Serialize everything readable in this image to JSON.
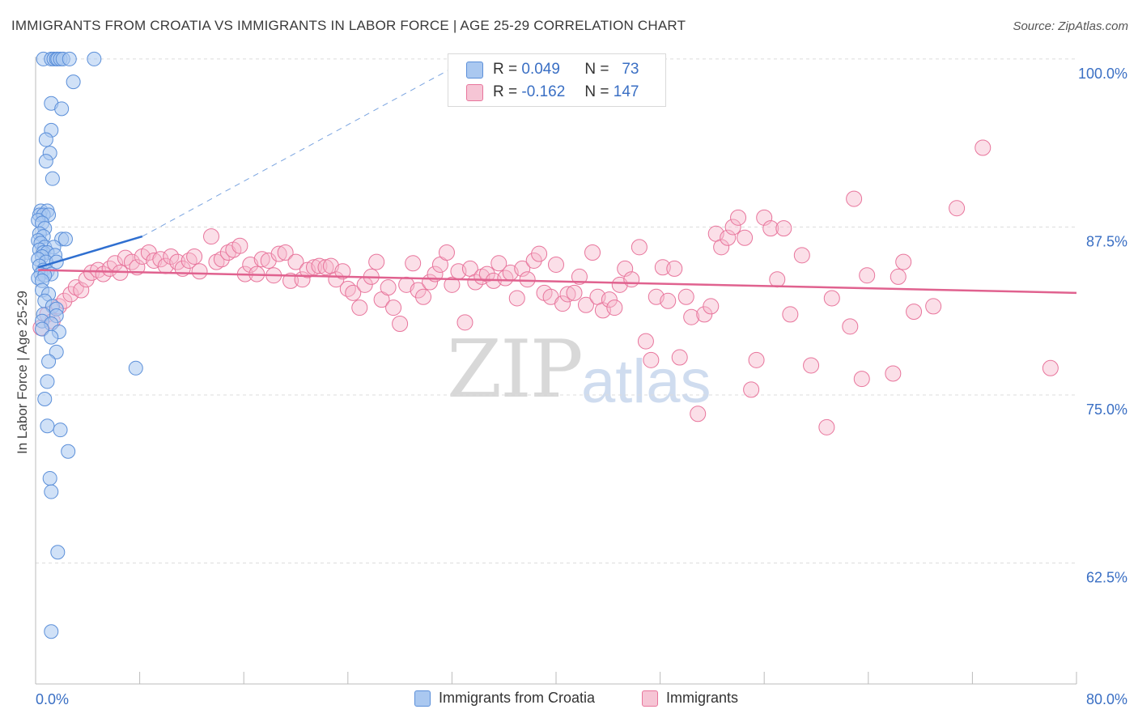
{
  "title": "IMMIGRANTS FROM CROATIA VS IMMIGRANTS IN LABOR FORCE | AGE 25-29 CORRELATION CHART",
  "source": "Source: ZipAtlas.com",
  "watermark": {
    "zip": "ZIP",
    "atlas": "atlas"
  },
  "colors": {
    "blue": "#5b8fd9",
    "blue_fill": "#aac8f0",
    "pink": "#e8759c",
    "pink_fill": "#f6b8cc",
    "axis_text": "#3a6fc4",
    "grid": "#dddddd"
  },
  "stats_legend": [
    {
      "r_label": "R =",
      "r_value": "0.049",
      "n_label": "N =",
      "n_value": "73",
      "series": "croatia"
    },
    {
      "r_label": "R =",
      "r_value": "-0.162",
      "n_label": "N =",
      "n_value": "147",
      "series": "immigrants"
    }
  ],
  "chart_data": {
    "type": "scatter",
    "title": "IMMIGRANTS FROM CROATIA VS IMMIGRANTS IN LABOR FORCE | AGE 25-29 CORRELATION CHART",
    "xlabel": "",
    "ylabel": "In Labor Force | Age 25-29",
    "xlim": [
      0,
      80
    ],
    "ylim": [
      53.5,
      101.5
    ],
    "x_tick_labels": [
      "0.0%",
      "80.0%"
    ],
    "y_ticks": [
      62.5,
      75.0,
      87.5,
      100.0
    ],
    "y_tick_labels": [
      "62.5%",
      "75.0%",
      "87.5%",
      "100.0%"
    ],
    "grid": true,
    "legend": [
      {
        "name": "Immigrants from Croatia"
      },
      {
        "name": "Immigrants"
      }
    ],
    "series": [
      {
        "name": "Immigrants from Croatia",
        "trend": {
          "x": [
            0.2,
            8.2
          ],
          "y": [
            84.5,
            86.8
          ],
          "dashed_to": [
            33.3,
            100.0
          ]
        },
        "points": [
          [
            0.6,
            100
          ],
          [
            1.2,
            100
          ],
          [
            1.4,
            100
          ],
          [
            1.6,
            100
          ],
          [
            1.7,
            100
          ],
          [
            1.9,
            100
          ],
          [
            2.1,
            100
          ],
          [
            2.6,
            100
          ],
          [
            4.5,
            100
          ],
          [
            2.9,
            98.3
          ],
          [
            1.2,
            96.7
          ],
          [
            2.0,
            96.3
          ],
          [
            1.2,
            94.7
          ],
          [
            0.8,
            94.0
          ],
          [
            1.1,
            93.0
          ],
          [
            0.8,
            92.4
          ],
          [
            1.3,
            91.1
          ],
          [
            0.4,
            88.7
          ],
          [
            0.9,
            88.7
          ],
          [
            0.3,
            88.4
          ],
          [
            0.6,
            88.4
          ],
          [
            1.0,
            88.4
          ],
          [
            0.2,
            88.0
          ],
          [
            0.5,
            87.8
          ],
          [
            0.7,
            87.4
          ],
          [
            0.3,
            87.0
          ],
          [
            0.6,
            86.8
          ],
          [
            2.0,
            86.6
          ],
          [
            2.3,
            86.6
          ],
          [
            0.2,
            86.5
          ],
          [
            0.4,
            86.3
          ],
          [
            0.7,
            86.0
          ],
          [
            1.4,
            86.0
          ],
          [
            0.3,
            85.8
          ],
          [
            0.6,
            85.6
          ],
          [
            0.9,
            85.6
          ],
          [
            0.5,
            85.3
          ],
          [
            1.5,
            85.4
          ],
          [
            0.2,
            85.1
          ],
          [
            0.8,
            84.9
          ],
          [
            1.6,
            84.9
          ],
          [
            0.3,
            84.6
          ],
          [
            0.6,
            84.3
          ],
          [
            0.9,
            84.2
          ],
          [
            0.4,
            84.0
          ],
          [
            1.2,
            84.0
          ],
          [
            0.2,
            83.7
          ],
          [
            0.7,
            83.9
          ],
          [
            0.5,
            83.5
          ],
          [
            0.5,
            82.8
          ],
          [
            1.0,
            82.5
          ],
          [
            0.7,
            82.0
          ],
          [
            1.3,
            81.6
          ],
          [
            1.6,
            81.4
          ],
          [
            0.6,
            81.0
          ],
          [
            1.6,
            80.9
          ],
          [
            0.5,
            80.5
          ],
          [
            1.2,
            80.3
          ],
          [
            0.5,
            79.9
          ],
          [
            1.8,
            79.7
          ],
          [
            1.2,
            79.3
          ],
          [
            1.6,
            78.2
          ],
          [
            1.0,
            77.5
          ],
          [
            7.7,
            77.0
          ],
          [
            0.9,
            76.0
          ],
          [
            0.7,
            74.7
          ],
          [
            0.9,
            72.7
          ],
          [
            1.9,
            72.4
          ],
          [
            2.5,
            70.8
          ],
          [
            1.1,
            68.8
          ],
          [
            1.2,
            67.8
          ],
          [
            1.7,
            63.3
          ],
          [
            1.2,
            57.4
          ]
        ]
      },
      {
        "name": "Immigrants",
        "trend": {
          "x": [
            0.2,
            80.0
          ],
          "y": [
            84.3,
            82.6
          ]
        },
        "points": [
          [
            0.4,
            80.0
          ],
          [
            0.9,
            81.0
          ],
          [
            1.3,
            80.5
          ],
          [
            1.8,
            81.6
          ],
          [
            2.2,
            82.0
          ],
          [
            2.7,
            82.5
          ],
          [
            3.1,
            83.0
          ],
          [
            3.5,
            82.8
          ],
          [
            3.9,
            83.6
          ],
          [
            4.3,
            84.1
          ],
          [
            4.8,
            84.3
          ],
          [
            5.2,
            84.0
          ],
          [
            5.7,
            84.4
          ],
          [
            6.1,
            84.8
          ],
          [
            6.5,
            84.1
          ],
          [
            6.9,
            85.2
          ],
          [
            7.4,
            84.9
          ],
          [
            7.8,
            84.5
          ],
          [
            8.2,
            85.3
          ],
          [
            8.7,
            85.6
          ],
          [
            9.1,
            85.0
          ],
          [
            9.6,
            85.1
          ],
          [
            10.0,
            84.6
          ],
          [
            10.4,
            85.3
          ],
          [
            10.9,
            84.9
          ],
          [
            11.3,
            84.4
          ],
          [
            11.8,
            85.0
          ],
          [
            12.2,
            85.3
          ],
          [
            12.6,
            84.2
          ],
          [
            13.5,
            86.8
          ],
          [
            13.9,
            84.9
          ],
          [
            14.3,
            85.1
          ],
          [
            14.8,
            85.6
          ],
          [
            15.2,
            85.8
          ],
          [
            15.7,
            86.1
          ],
          [
            16.1,
            84.0
          ],
          [
            16.5,
            84.7
          ],
          [
            17.0,
            84.0
          ],
          [
            17.4,
            85.1
          ],
          [
            17.9,
            85.0
          ],
          [
            18.3,
            83.9
          ],
          [
            18.7,
            85.5
          ],
          [
            19.2,
            85.6
          ],
          [
            19.6,
            83.5
          ],
          [
            20.0,
            84.9
          ],
          [
            20.5,
            83.6
          ],
          [
            20.9,
            84.3
          ],
          [
            21.4,
            84.5
          ],
          [
            21.8,
            84.6
          ],
          [
            22.3,
            84.5
          ],
          [
            22.7,
            84.6
          ],
          [
            23.1,
            83.6
          ],
          [
            23.6,
            84.2
          ],
          [
            24.0,
            82.9
          ],
          [
            24.4,
            82.6
          ],
          [
            24.9,
            81.5
          ],
          [
            25.3,
            83.2
          ],
          [
            25.8,
            83.8
          ],
          [
            26.2,
            84.9
          ],
          [
            26.6,
            82.1
          ],
          [
            27.1,
            83.0
          ],
          [
            27.5,
            81.5
          ],
          [
            28.0,
            80.3
          ],
          [
            28.5,
            83.2
          ],
          [
            29.0,
            84.8
          ],
          [
            29.4,
            82.8
          ],
          [
            29.8,
            82.3
          ],
          [
            30.3,
            83.4
          ],
          [
            30.7,
            84.0
          ],
          [
            31.1,
            84.7
          ],
          [
            31.6,
            85.6
          ],
          [
            32.0,
            83.2
          ],
          [
            32.5,
            84.2
          ],
          [
            33.0,
            80.4
          ],
          [
            33.4,
            84.4
          ],
          [
            33.8,
            83.4
          ],
          [
            34.3,
            83.8
          ],
          [
            34.7,
            84.0
          ],
          [
            35.2,
            83.5
          ],
          [
            35.6,
            84.8
          ],
          [
            36.1,
            83.7
          ],
          [
            36.5,
            84.1
          ],
          [
            37.0,
            82.2
          ],
          [
            37.4,
            84.4
          ],
          [
            37.8,
            83.6
          ],
          [
            38.3,
            85.0
          ],
          [
            38.7,
            85.5
          ],
          [
            39.1,
            82.6
          ],
          [
            39.6,
            82.3
          ],
          [
            40.0,
            84.7
          ],
          [
            40.5,
            81.8
          ],
          [
            40.9,
            82.5
          ],
          [
            41.4,
            82.6
          ],
          [
            41.8,
            83.8
          ],
          [
            42.3,
            81.7
          ],
          [
            42.8,
            85.6
          ],
          [
            43.2,
            82.3
          ],
          [
            43.6,
            81.3
          ],
          [
            44.1,
            82.1
          ],
          [
            44.5,
            81.5
          ],
          [
            44.9,
            83.2
          ],
          [
            45.3,
            84.4
          ],
          [
            45.8,
            83.6
          ],
          [
            46.4,
            86.0
          ],
          [
            46.9,
            79.0
          ],
          [
            47.3,
            77.6
          ],
          [
            47.7,
            82.3
          ],
          [
            48.2,
            84.5
          ],
          [
            48.6,
            82.0
          ],
          [
            49.1,
            84.4
          ],
          [
            49.5,
            77.8
          ],
          [
            50.0,
            82.3
          ],
          [
            50.4,
            80.8
          ],
          [
            50.9,
            73.6
          ],
          [
            51.4,
            81.0
          ],
          [
            51.9,
            81.6
          ],
          [
            52.3,
            87.0
          ],
          [
            52.7,
            86.0
          ],
          [
            53.2,
            86.7
          ],
          [
            53.6,
            87.5
          ],
          [
            54.0,
            88.2
          ],
          [
            54.5,
            86.7
          ],
          [
            55.0,
            75.4
          ],
          [
            55.4,
            77.6
          ],
          [
            56.0,
            88.2
          ],
          [
            56.5,
            87.4
          ],
          [
            57.0,
            83.6
          ],
          [
            57.5,
            87.4
          ],
          [
            58.0,
            81.0
          ],
          [
            58.9,
            85.4
          ],
          [
            59.6,
            77.2
          ],
          [
            60.8,
            72.6
          ],
          [
            61.2,
            82.2
          ],
          [
            62.6,
            80.1
          ],
          [
            62.9,
            89.6
          ],
          [
            63.5,
            76.2
          ],
          [
            63.9,
            83.9
          ],
          [
            65.9,
            76.6
          ],
          [
            66.3,
            83.8
          ],
          [
            66.7,
            84.9
          ],
          [
            67.5,
            81.2
          ],
          [
            69.0,
            81.6
          ],
          [
            70.8,
            88.9
          ],
          [
            72.8,
            93.4
          ],
          [
            78.0,
            77.0
          ]
        ]
      }
    ]
  }
}
